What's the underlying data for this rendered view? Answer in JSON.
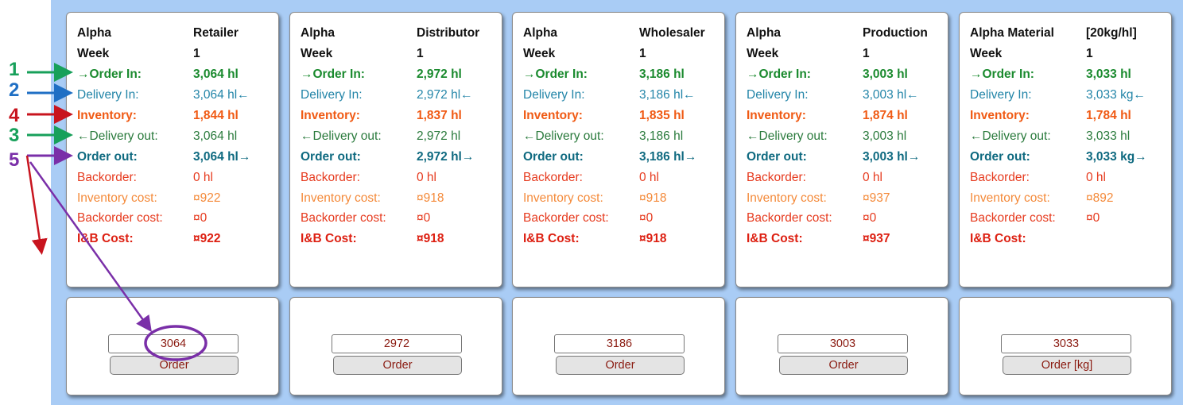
{
  "panels": [
    {
      "header": [
        "Alpha",
        "Retailer"
      ],
      "rows": [
        [
          "Week",
          "1"
        ],
        [
          "→Order In:",
          "3,064 hl"
        ],
        [
          "Delivery In:",
          "3,064 hl←"
        ],
        [
          "Inventory:",
          "1,844 hl"
        ],
        [
          "←Delivery out:",
          "3,064 hl"
        ],
        [
          "Order out:",
          "3,064 hl→"
        ],
        [
          "Backorder:",
          "0 hl"
        ],
        [
          "Inventory cost:",
          "¤922"
        ],
        [
          "Backorder cost:",
          "¤0"
        ],
        [
          "I&B Cost:",
          "¤922"
        ]
      ],
      "order_value": "3064",
      "order_button": "Order"
    },
    {
      "header": [
        "Alpha",
        "Distributor"
      ],
      "rows": [
        [
          "Week",
          "1"
        ],
        [
          "→Order In:",
          "2,972 hl"
        ],
        [
          "Delivery In:",
          "2,972 hl←"
        ],
        [
          "Inventory:",
          "1,837 hl"
        ],
        [
          "←Delivery out:",
          "2,972 hl"
        ],
        [
          "Order out:",
          "2,972 hl→"
        ],
        [
          "Backorder:",
          "0 hl"
        ],
        [
          "Inventory cost:",
          "¤918"
        ],
        [
          "Backorder cost:",
          "¤0"
        ],
        [
          "I&B Cost:",
          "¤918"
        ]
      ],
      "order_value": "2972",
      "order_button": "Order"
    },
    {
      "header": [
        "Alpha",
        "Wholesaler"
      ],
      "rows": [
        [
          "Week",
          "1"
        ],
        [
          "→Order In:",
          "3,186 hl"
        ],
        [
          "Delivery In:",
          "3,186 hl←"
        ],
        [
          "Inventory:",
          "1,835 hl"
        ],
        [
          "←Delivery out:",
          "3,186 hl"
        ],
        [
          "Order out:",
          "3,186 hl→"
        ],
        [
          "Backorder:",
          "0 hl"
        ],
        [
          "Inventory cost:",
          "¤918"
        ],
        [
          "Backorder cost:",
          "¤0"
        ],
        [
          "I&B Cost:",
          "¤918"
        ]
      ],
      "order_value": "3186",
      "order_button": "Order"
    },
    {
      "header": [
        "Alpha",
        "Production"
      ],
      "rows": [
        [
          "Week",
          "1"
        ],
        [
          "→Order In:",
          "3,003 hl"
        ],
        [
          "Delivery In:",
          "3,003 hl←"
        ],
        [
          "Inventory:",
          "1,874 hl"
        ],
        [
          "←Delivery out:",
          "3,003 hl"
        ],
        [
          "Order out:",
          "3,003 hl→"
        ],
        [
          "Backorder:",
          "0 hl"
        ],
        [
          "Inventory cost:",
          "¤937"
        ],
        [
          "Backorder cost:",
          "¤0"
        ],
        [
          "I&B Cost:",
          "¤937"
        ]
      ],
      "order_value": "3003",
      "order_button": "Order"
    },
    {
      "header": [
        "Alpha Material",
        "[20kg/hl]"
      ],
      "rows": [
        [
          "Week",
          "1"
        ],
        [
          "→Order In:",
          "3,033 hl"
        ],
        [
          "Delivery In:",
          "3,033 kg←"
        ],
        [
          "Inventory:",
          "1,784 hl"
        ],
        [
          "←Delivery out:",
          "3,033 hl"
        ],
        [
          "Order out:",
          "3,033 kg→"
        ],
        [
          "Backorder:",
          "0 hl"
        ],
        [
          "Inventory cost:",
          "¤892"
        ],
        [
          "Backorder cost:",
          "¤0"
        ],
        [
          "I&B Cost:",
          ""
        ]
      ],
      "order_value": "3033",
      "order_button": "Order [kg]"
    }
  ],
  "annotations": [
    "1",
    "2",
    "4",
    "3",
    "5"
  ],
  "colors": {
    "board": "#a9ccf5",
    "order_in": "#1a8a2e",
    "delivery_in": "#2385a8",
    "inventory": "#f05a14",
    "delivery_out": "#2a7a3c",
    "order_out": "#0f6a80",
    "backorder": "#e63a1e",
    "costs": "#f48a3a",
    "ib_cost": "#dd2012",
    "annotation_1": "#17a05a",
    "annotation_2": "#1f6fc4",
    "annotation_4": "#c8141e",
    "annotation_3": "#17a05a",
    "annotation_5": "#7a2fa8"
  }
}
